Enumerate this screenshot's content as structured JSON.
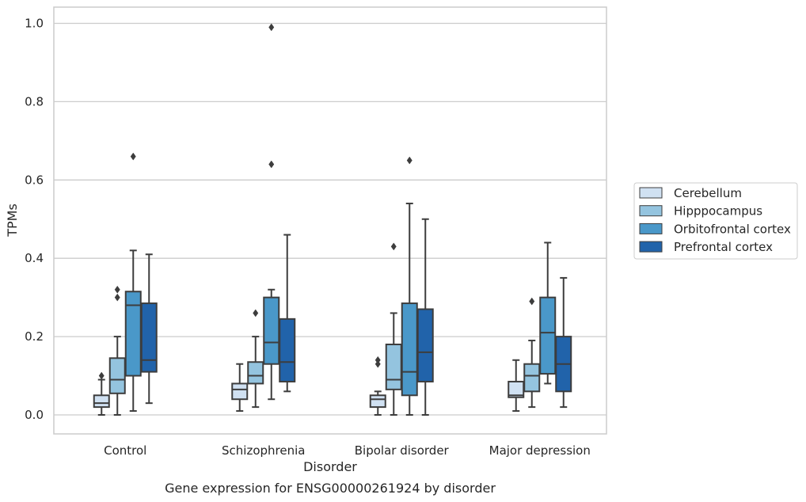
{
  "chart_data": {
    "type": "box",
    "title": "",
    "caption": "Gene expression for ENSG00000261924 by disorder",
    "xlabel": "Disorder",
    "ylabel": "TPMs",
    "ylim": [
      -0.05,
      1.04
    ],
    "yticks": [
      0.0,
      0.2,
      0.4,
      0.6,
      0.8,
      1.0
    ],
    "ytick_labels": [
      "0.0",
      "0.2",
      "0.4",
      "0.6",
      "0.8",
      "1.0"
    ],
    "grid": "horizontal",
    "legend_position": "center-right",
    "categories": [
      "Control",
      "Schizophrenia",
      "Bipolar disorder",
      "Major depression"
    ],
    "series": [
      {
        "name": "Cerebellum",
        "color": "#d0e1f2",
        "boxes": [
          {
            "whislo": 0.0,
            "q1": 0.02,
            "med": 0.03,
            "q3": 0.05,
            "whishi": 0.09,
            "fliers": [
              0.1
            ]
          },
          {
            "whislo": 0.01,
            "q1": 0.04,
            "med": 0.065,
            "q3": 0.08,
            "whishi": 0.13,
            "fliers": []
          },
          {
            "whislo": 0.0,
            "q1": 0.02,
            "med": 0.04,
            "q3": 0.05,
            "whishi": 0.06,
            "fliers": [
              0.13,
              0.14
            ]
          },
          {
            "whislo": 0.01,
            "q1": 0.045,
            "med": 0.05,
            "q3": 0.085,
            "whishi": 0.14,
            "fliers": []
          }
        ]
      },
      {
        "name": "Hipppocampus",
        "color": "#94c4df",
        "boxes": [
          {
            "whislo": 0.0,
            "q1": 0.055,
            "med": 0.09,
            "q3": 0.145,
            "whishi": 0.2,
            "fliers": [
              0.3,
              0.32
            ]
          },
          {
            "whislo": 0.02,
            "q1": 0.08,
            "med": 0.1,
            "q3": 0.135,
            "whishi": 0.2,
            "fliers": [
              0.26
            ]
          },
          {
            "whislo": 0.0,
            "q1": 0.065,
            "med": 0.09,
            "q3": 0.18,
            "whishi": 0.26,
            "fliers": [
              0.43
            ]
          },
          {
            "whislo": 0.02,
            "q1": 0.06,
            "med": 0.1,
            "q3": 0.13,
            "whishi": 0.19,
            "fliers": [
              0.29
            ]
          }
        ]
      },
      {
        "name": "Orbitofrontal cortex",
        "color": "#4a98c9",
        "boxes": [
          {
            "whislo": 0.01,
            "q1": 0.1,
            "med": 0.28,
            "q3": 0.315,
            "whishi": 0.42,
            "fliers": [
              0.66
            ]
          },
          {
            "whislo": 0.04,
            "q1": 0.13,
            "med": 0.185,
            "q3": 0.3,
            "whishi": 0.32,
            "fliers": [
              0.64,
              0.99
            ]
          },
          {
            "whislo": 0.0,
            "q1": 0.05,
            "med": 0.11,
            "q3": 0.285,
            "whishi": 0.54,
            "fliers": [
              0.65
            ]
          },
          {
            "whislo": 0.08,
            "q1": 0.105,
            "med": 0.21,
            "q3": 0.3,
            "whishi": 0.44,
            "fliers": []
          }
        ]
      },
      {
        "name": "Prefrontal cortex",
        "color": "#2163aa",
        "boxes": [
          {
            "whislo": 0.03,
            "q1": 0.11,
            "med": 0.14,
            "q3": 0.285,
            "whishi": 0.41,
            "fliers": []
          },
          {
            "whislo": 0.06,
            "q1": 0.085,
            "med": 0.135,
            "q3": 0.245,
            "whishi": 0.46,
            "fliers": []
          },
          {
            "whislo": 0.0,
            "q1": 0.085,
            "med": 0.16,
            "q3": 0.27,
            "whishi": 0.5,
            "fliers": []
          },
          {
            "whislo": 0.02,
            "q1": 0.06,
            "med": 0.13,
            "q3": 0.2,
            "whishi": 0.35,
            "fliers": []
          }
        ]
      }
    ],
    "colors": {
      "grid": "#cccccc",
      "frame": "#cccccc",
      "line": "#3d3d3d",
      "text": "#262626"
    }
  }
}
